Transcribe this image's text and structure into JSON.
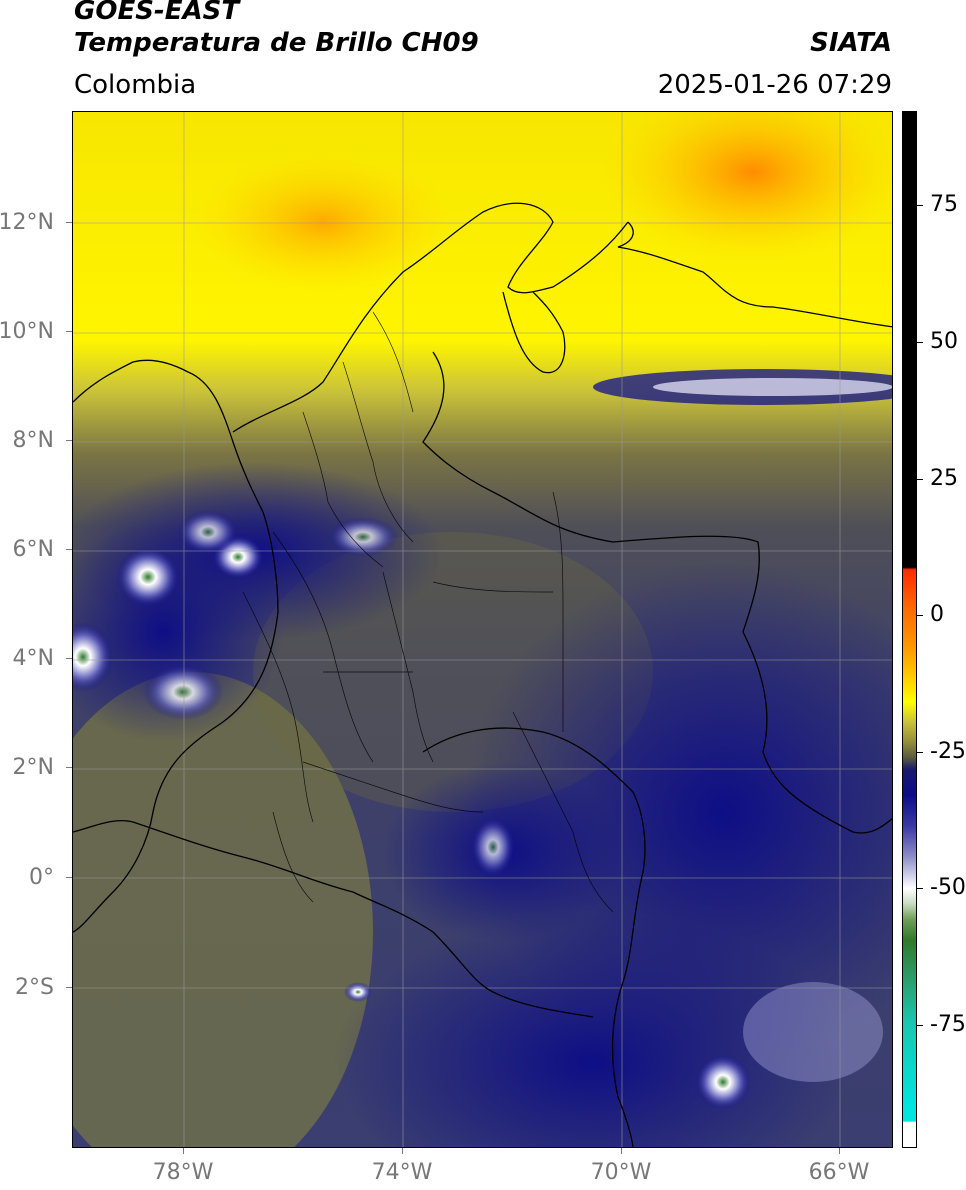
{
  "header": {
    "satellite": "GOES-EAST",
    "product": "Temperatura de Brillo CH09",
    "organization": "SIATA",
    "region": "Colombia",
    "timestamp": "2025-01-26 07:29"
  },
  "map": {
    "lat_labels": [
      "12°N",
      "10°N",
      "8°N",
      "6°N",
      "4°N",
      "2°N",
      "0°",
      "2°S"
    ],
    "lon_labels": [
      "78°W",
      "74°W",
      "70°W",
      "66°W"
    ]
  },
  "colorbar": {
    "labels": [
      "75",
      "50",
      "25",
      "0",
      "-25",
      "-50",
      "-75"
    ]
  }
}
